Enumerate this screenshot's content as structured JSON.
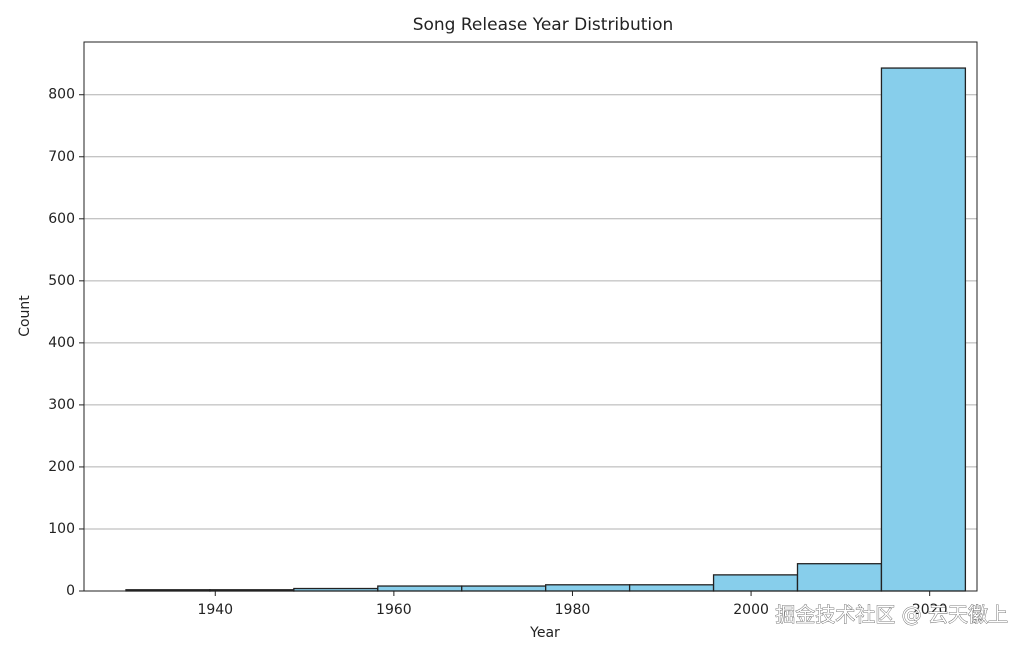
{
  "chart_data": {
    "type": "histogram",
    "title": "Song Release Year Distribution",
    "x_label": "Year",
    "y_label": "Count",
    "bins": [
      1930,
      1939.4,
      1948.8,
      1958.2,
      1967.6,
      1977,
      1986.4,
      1995.8,
      2005.2,
      2014.6,
      2024
    ],
    "values": [
      2,
      2,
      4,
      8,
      8,
      10,
      10,
      26,
      44,
      843
    ],
    "color": "#87ceeb",
    "edgecolor": "#222222",
    "xlim": [
      1925.3,
      2025.3
    ],
    "xticks": [
      1940,
      1960,
      1980,
      2000,
      2020
    ],
    "ylim": [
      0,
      885
    ],
    "yticks": [
      0,
      100,
      200,
      300,
      400,
      500,
      600,
      700,
      800
    ],
    "grid": "y",
    "annotation": "掘金技术社区 @ 云天徽上"
  }
}
